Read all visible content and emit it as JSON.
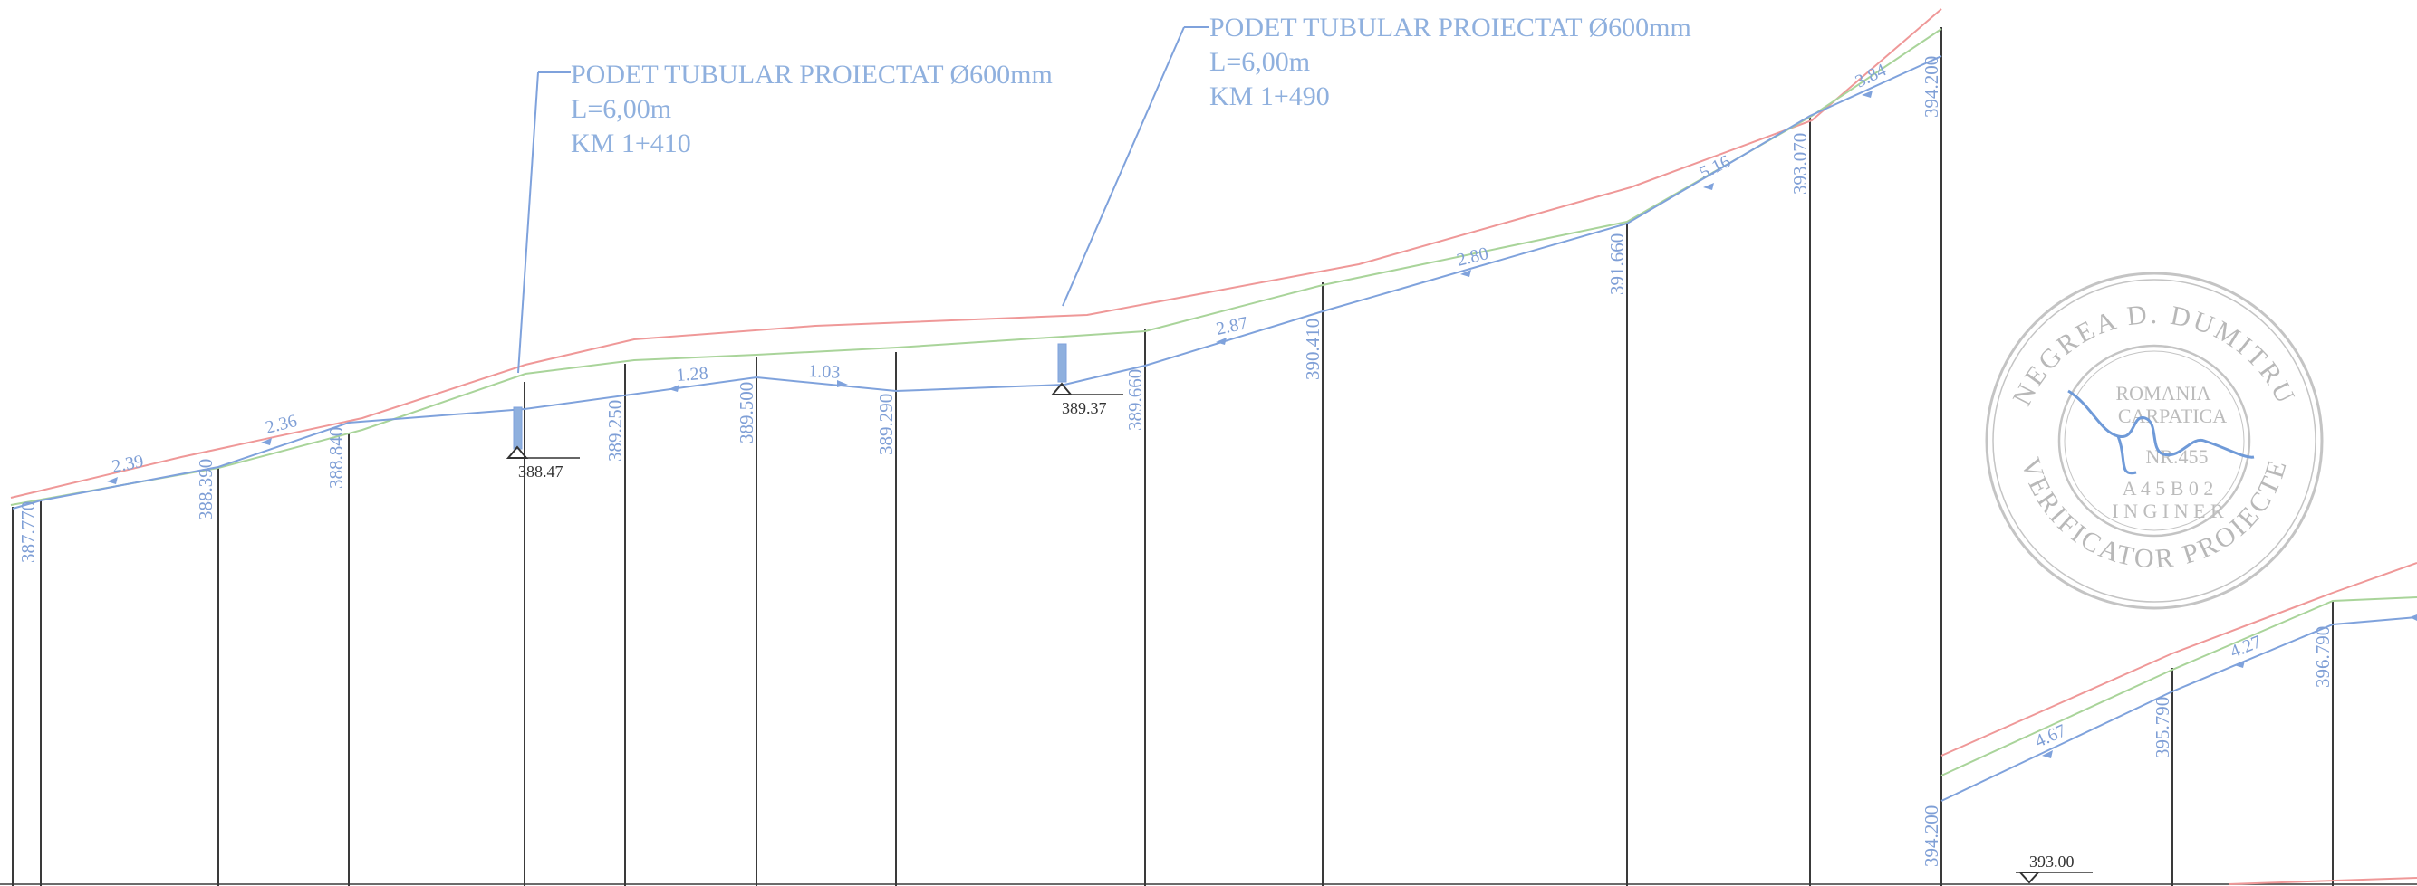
{
  "colors": {
    "design_line": "#7fa2dc",
    "terrain_red": "#ef9898",
    "terrain_green": "#a9d49a",
    "station_lines": "#3a3a3a",
    "stamp": "#bdbdbd",
    "signature": "#6f9ad8"
  },
  "culverts": [
    {
      "title": "PODET TUBULAR PROIECTAT Ø600mm",
      "length": "L=6,00m",
      "chainage": "KM 1+410",
      "invert": "388.47"
    },
    {
      "title": "PODET TUBULAR PROIECTAT Ø600mm",
      "length": "L=6,00m",
      "chainage": "KM 1+490",
      "invert": "389.37"
    }
  ],
  "profile_left": {
    "elevations": [
      "387.770",
      "388.390",
      "388.840",
      "389.250",
      "389.500",
      "389.290",
      "389.660",
      "390.410",
      "391.660",
      "393.070",
      "394.200"
    ],
    "grades": [
      "2.39",
      "2.36",
      "1.28",
      "1.03",
      "2.87",
      "2.80",
      "5.16",
      "3.84"
    ]
  },
  "profile_right": {
    "elevations": [
      "394.200",
      "395.790",
      "396.790"
    ],
    "grades": [
      "4.67",
      "4.27"
    ],
    "datum": "393.00"
  },
  "stamp": {
    "outer_text": "NEGREA D. DUMITRU • VERIFICATOR PROIECTE",
    "inner_text": "ROMANIA • CARPATICA •",
    "number": "NR.455",
    "code": "A 4 5 B 0 2",
    "word": "I N G I N E R"
  }
}
